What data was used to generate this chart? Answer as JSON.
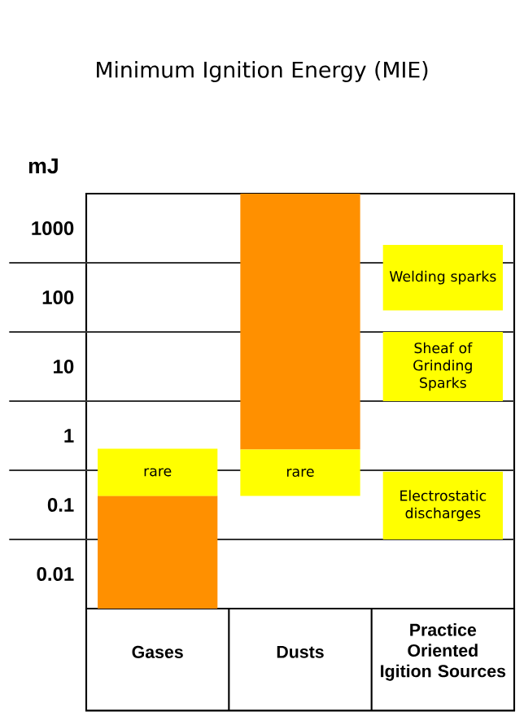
{
  "chart_data": {
    "type": "bar",
    "title": "Minimum Ignition Energy (MIE)",
    "ylabel": "mJ",
    "categories": [
      "Gases",
      "Dusts",
      "Practice Oriented Igition Sources"
    ],
    "log": true,
    "ylim": [
      0.00316,
      3162
    ],
    "yticks": [
      0.01,
      0.1,
      1,
      10,
      100,
      1000
    ],
    "series": [
      {
        "color": "#ff9000",
        "base": [
          0.00316,
          0.63,
          null
        ],
        "values": [
          0.132,
          3161,
          null
        ]
      },
      {
        "color": "#ffff00",
        "base": [
          0.135,
          0.135,
          null
        ],
        "values": [
          0.515,
          0.495,
          null
        ],
        "value_labels": [
          "rare",
          "rare",
          null
        ]
      },
      {
        "color": "#ffff00",
        "base": [
          null,
          null,
          65
        ],
        "values": [
          null,
          null,
          510
        ],
        "value_labels": [
          null,
          null,
          "Welding sparks"
        ]
      },
      {
        "color": "#ffff00",
        "base": [
          null,
          null,
          3.16
        ],
        "values": [
          null,
          null,
          28.4
        ],
        "value_labels": [
          null,
          null,
          "Sheaf of Grinding Sparks"
        ]
      },
      {
        "color": "#ffff00",
        "base": [
          null,
          null,
          0.0316
        ],
        "values": [
          null,
          null,
          0.27
        ],
        "value_labels": [
          null,
          null,
          "Electrostatic discharges"
        ]
      }
    ],
    "ref_lines": [
      {
        "axis": "y",
        "value": 0.0316,
        "color": "#333333"
      },
      {
        "axis": "y",
        "value": 0.316,
        "color": "#333333"
      },
      {
        "axis": "y",
        "value": 3.16,
        "color": "#333333"
      },
      {
        "axis": "y",
        "value": 31.6,
        "color": "#333333"
      },
      {
        "axis": "y",
        "value": 316,
        "color": "#333333"
      }
    ]
  }
}
